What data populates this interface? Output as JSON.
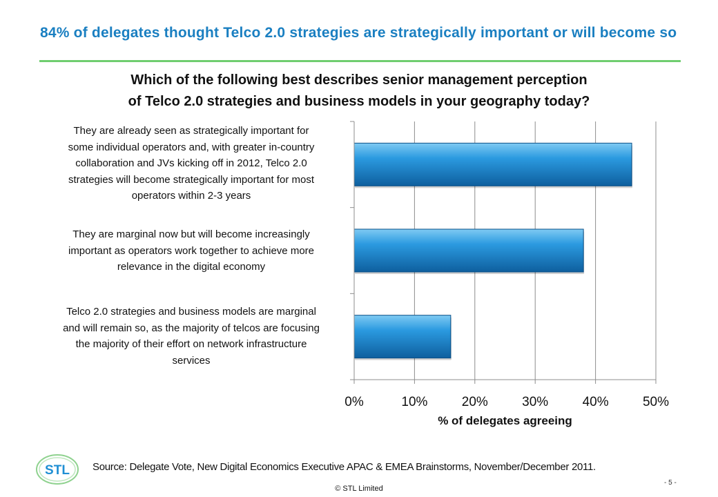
{
  "slide": {
    "title": "84% of delegates thought Telco 2.0 strategies are strategically important or will become so",
    "source": "Source: Delegate Vote, New Digital Economics Executive APAC & EMEA Brainstorms, November/December 2011.",
    "copyright": "© STL Limited",
    "page_number": "- 5 -",
    "logo_text": "STL"
  },
  "chart_data": {
    "type": "bar",
    "orientation": "horizontal",
    "title": "Which of the following best describes senior management perception of Telco 2.0 strategies and business models in your geography today?",
    "title_lines": [
      "Which of the following best describes senior management perception",
      "of Telco 2.0 strategies and business models in your geography today?"
    ],
    "categories": [
      "They are already seen as strategically important for some individual operators and, with greater in-country collaboration and JVs kicking off in 2012, Telco 2.0 strategies will become strategically important for most operators within 2-3 years",
      "They are marginal now but will become increasingly important as operators work together to achieve more relevance in the digital economy",
      "Telco 2.0 strategies and business models are marginal and will remain so, as the majority of telcos are focusing the majority of their effort on network infrastructure services"
    ],
    "category_lines": [
      [
        "They are already seen as strategically important for",
        "some individual operators and, with greater in-country",
        "collaboration and JVs kicking off in 2012, Telco 2.0",
        "strategies will become strategically important for most",
        "operators within 2-3 years"
      ],
      [
        "They are marginal now but will become increasingly",
        "important as operators work together to achieve more",
        "relevance in the digital economy"
      ],
      [
        "Telco 2.0 strategies and business models are marginal",
        "and will remain so, as the majority of telcos are focusing",
        "the majority of their effort on network infrastructure",
        "services"
      ]
    ],
    "values": [
      46,
      38,
      16
    ],
    "xlabel": "% of delegates agreeing",
    "ylabel": "",
    "xlim": [
      0,
      50
    ],
    "ticks": [
      "0%",
      "10%",
      "20%",
      "30%",
      "40%",
      "50%"
    ],
    "grid": true,
    "bar_color": "#1f8fd4"
  },
  "colors": {
    "title": "#1a7fc1",
    "rule": "#6fcd6f",
    "grid": "#8c8c8c"
  }
}
